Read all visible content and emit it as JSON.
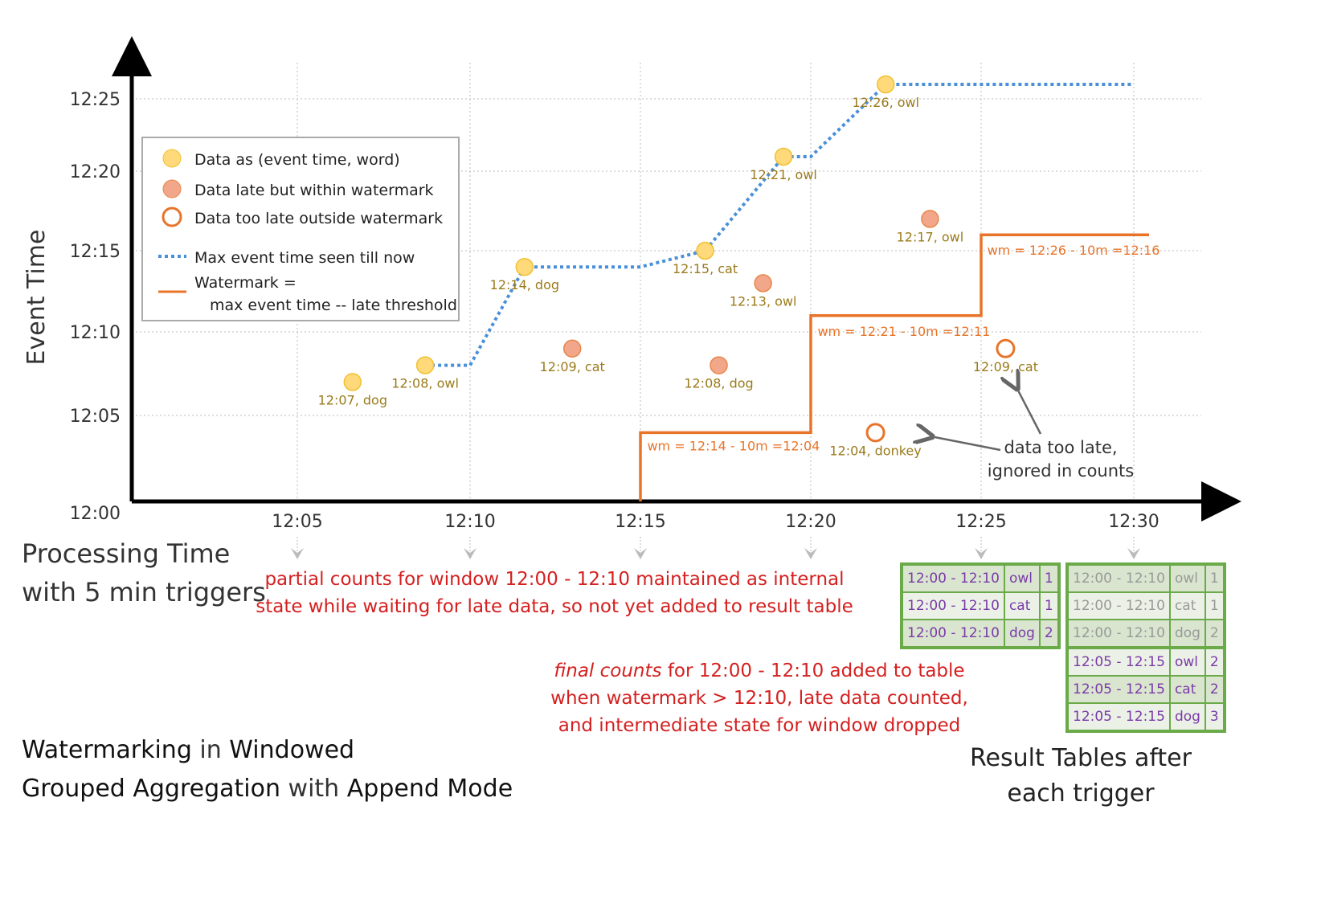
{
  "title": {
    "w1": "Watermarking",
    "t1": " in ",
    "w2": "Windowed",
    "w3": "Grouped Aggregation",
    "t2": " with ",
    "w4": "Append Mode"
  },
  "axes": {
    "y_label": "Event Time",
    "x_label_line1": "Processing Time",
    "x_label_line2": "with 5 min triggers",
    "y_ticks": [
      "12:00",
      "12:05",
      "12:10",
      "12:15",
      "12:20",
      "12:25"
    ],
    "x_ticks": [
      "12:05",
      "12:10",
      "12:15",
      "12:20",
      "12:25",
      "12:30"
    ]
  },
  "legend": {
    "on_time": "Data as (event time, word)",
    "late": "Data late but within watermark",
    "too_late": "Data too late outside watermark",
    "max": "Max event time seen till now",
    "wm1": "Watermark =",
    "wm2": "max event time -- late threshold"
  },
  "colors": {
    "on_time": "#ffd97a",
    "late": "#f2a68a",
    "too_late": "#e8742a",
    "max_line": "#4a90d9",
    "watermark": "#e8742a",
    "table_border": "#6aaa48",
    "annotation": "#d42020"
  },
  "chart_data": {
    "type": "scatter",
    "xlabel": "Processing Time",
    "ylabel": "Event Time",
    "points": [
      {
        "proc": 6.6,
        "event": 7,
        "label": "12:07, dog",
        "kind": "on_time"
      },
      {
        "proc": 8.7,
        "event": 8,
        "label": "12:08, owl",
        "kind": "on_time"
      },
      {
        "proc": 11.6,
        "event": 14,
        "label": "12:14, dog",
        "kind": "on_time"
      },
      {
        "proc": 13.0,
        "event": 9,
        "label": "12:09, cat",
        "kind": "late"
      },
      {
        "proc": 16.9,
        "event": 15,
        "label": "12:15, cat",
        "kind": "on_time"
      },
      {
        "proc": 17.3,
        "event": 8,
        "label": "12:08, dog",
        "kind": "late"
      },
      {
        "proc": 18.6,
        "event": 13,
        "label": "12:13, owl",
        "kind": "late"
      },
      {
        "proc": 19.2,
        "event": 21,
        "label": "12:21, owl",
        "kind": "on_time"
      },
      {
        "proc": 22.2,
        "event": 26,
        "label": "12:26, owl",
        "kind": "on_time"
      },
      {
        "proc": 23.5,
        "event": 17,
        "label": "12:17, owl",
        "kind": "late"
      },
      {
        "proc": 21.9,
        "event": 4,
        "label": "12:04, donkey",
        "kind": "too_late"
      },
      {
        "proc": 25.8,
        "event": 9,
        "label": "12:09, cat",
        "kind": "too_late"
      }
    ],
    "max_event_time": [
      [
        8.7,
        8
      ],
      [
        10,
        8
      ],
      [
        11.6,
        14
      ],
      [
        15,
        14
      ],
      [
        16.9,
        15
      ],
      [
        19.2,
        21
      ],
      [
        20,
        21
      ],
      [
        22.2,
        26
      ],
      [
        30,
        26
      ]
    ],
    "watermark": [
      [
        15,
        0
      ],
      [
        15,
        4
      ],
      [
        20,
        4
      ],
      [
        20,
        11
      ],
      [
        25,
        11
      ],
      [
        25,
        16
      ],
      [
        30.5,
        16
      ]
    ],
    "watermark_labels": [
      "wm = 12:14 - 10m =12:04",
      "wm = 12:21 - 10m =12:11",
      "wm = 12:26 - 10m =12:16"
    ]
  },
  "annotations": {
    "partial1": "partial counts for window 12:00 - 12:10 maintained as internal",
    "partial2": "state while waiting for late data, so not yet added  to result table",
    "final_em": "final counts",
    "final1": " for 12:00 - 12:10 added to table",
    "final2": "when watermark > 12:10, late data counted,",
    "final3": "and intermediate state for window dropped",
    "too_late1": "data too late,",
    "too_late2": "ignored in counts"
  },
  "tables": {
    "caption1": "Result Tables after",
    "caption2": "each trigger",
    "t1": [
      [
        "12:00 - 12:10",
        "owl",
        "1"
      ],
      [
        "12:00 - 12:10",
        "cat",
        "1"
      ],
      [
        "12:00 - 12:10",
        "dog",
        "2"
      ]
    ],
    "t2": [
      [
        "12:00 - 12:10",
        "owl",
        "1"
      ],
      [
        "12:00 - 12:10",
        "cat",
        "1"
      ],
      [
        "12:00 - 12:10",
        "dog",
        "2"
      ],
      [
        "12:05 - 12:15",
        "owl",
        "2"
      ],
      [
        "12:05 - 12:15",
        "cat",
        "2"
      ],
      [
        "12:05 - 12:15",
        "dog",
        "3"
      ]
    ]
  }
}
